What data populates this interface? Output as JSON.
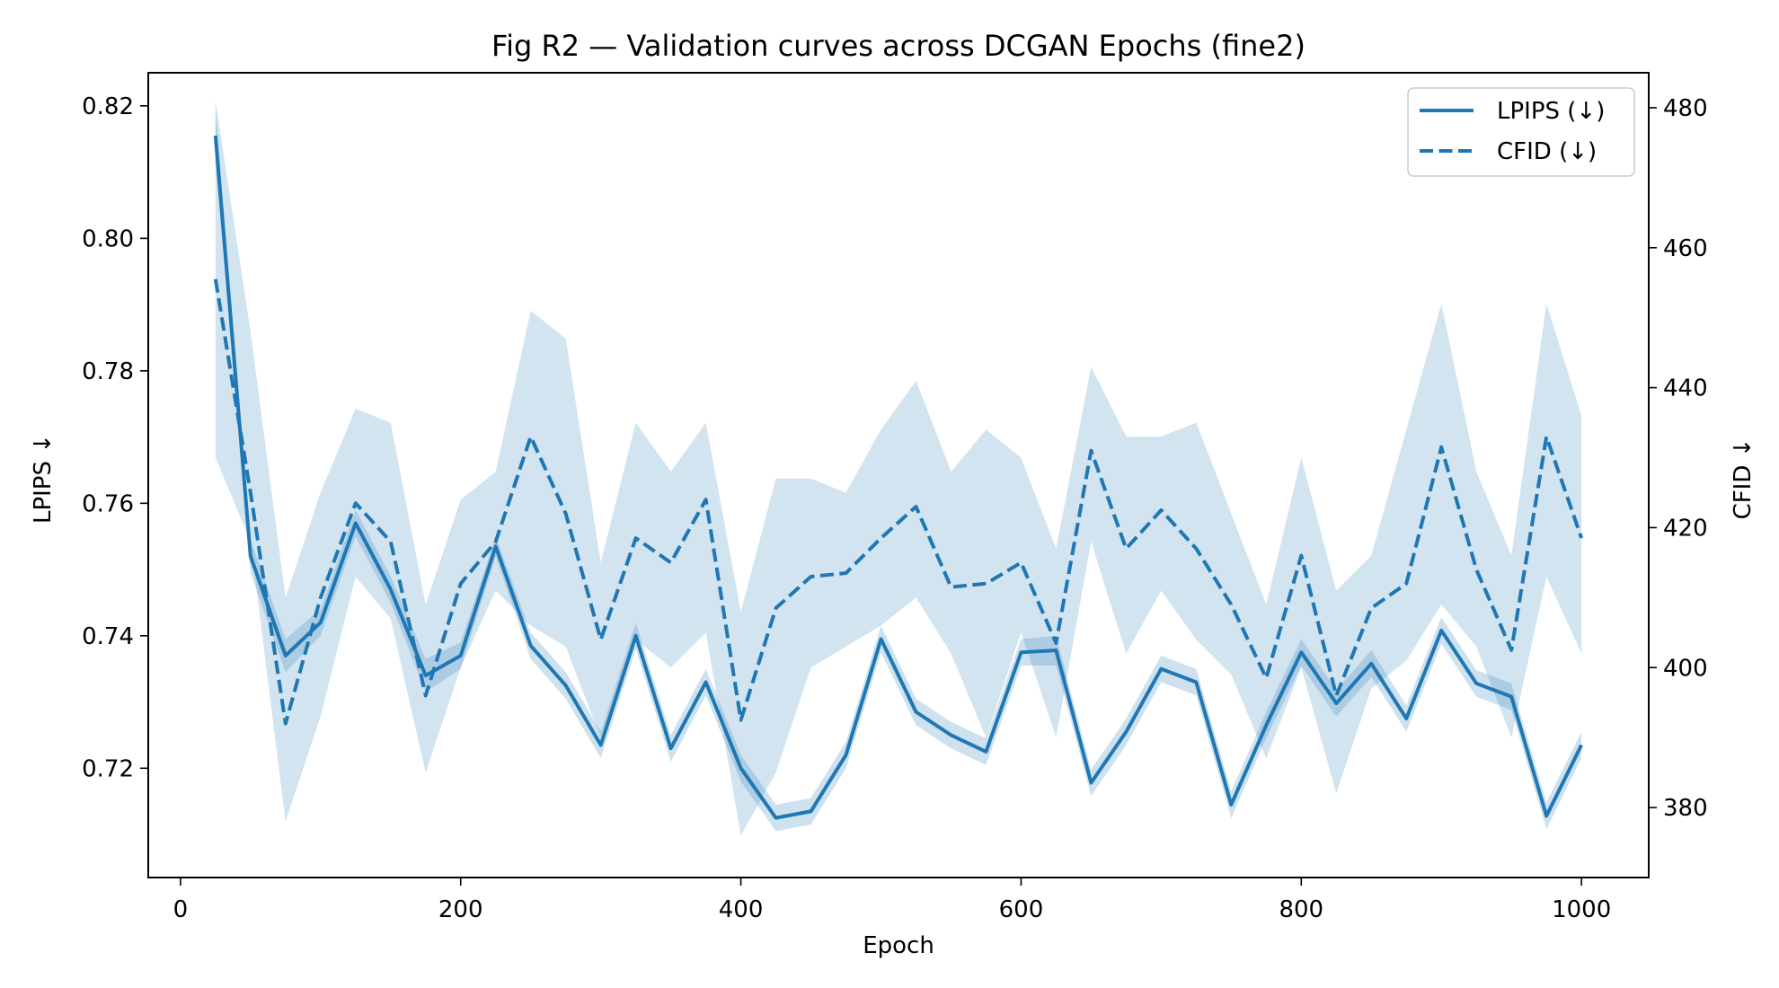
{
  "chart_data": {
    "type": "line",
    "title": "Fig R2 — Validation curves across DCGAN Epochs (fine2)",
    "xlabel": "Epoch",
    "ylabel_left": "LPIPS ↓",
    "ylabel_right": "CFID ↓",
    "xlim": [
      -23,
      1048
    ],
    "ylim_left": [
      0.7035,
      0.825
    ],
    "ylim_right": [
      370,
      485
    ],
    "xticks": [
      0,
      200,
      400,
      600,
      800,
      1000
    ],
    "yticks_left": [
      0.72,
      0.74,
      0.76,
      0.78,
      0.8,
      0.82
    ],
    "yticks_left_labels": [
      "0.72",
      "0.74",
      "0.76",
      "0.78",
      "0.80",
      "0.82"
    ],
    "yticks_right": [
      380,
      400,
      420,
      440,
      460,
      480
    ],
    "legend_position": "upper-right",
    "color": "#1f77b4",
    "band_color": "#1f77b4",
    "x": [
      25,
      50,
      75,
      100,
      125,
      150,
      175,
      200,
      225,
      250,
      275,
      300,
      325,
      350,
      375,
      400,
      425,
      450,
      475,
      500,
      525,
      550,
      575,
      600,
      625,
      650,
      675,
      700,
      725,
      750,
      775,
      800,
      825,
      850,
      875,
      900,
      925,
      950,
      975,
      1000
    ],
    "series": [
      {
        "name": "LPIPS (↓)",
        "axis": "left",
        "style": "solid",
        "values": [
          0.8155,
          0.752,
          0.737,
          0.742,
          0.757,
          0.747,
          0.734,
          0.737,
          0.7535,
          0.7385,
          0.7325,
          0.7235,
          0.74,
          0.723,
          0.733,
          0.72,
          0.7125,
          0.7135,
          0.722,
          0.7395,
          0.7285,
          0.725,
          0.7225,
          0.7375,
          0.7378,
          0.7178,
          0.7255,
          0.735,
          0.733,
          0.7145,
          0.7265,
          0.7375,
          0.7298,
          0.7358,
          0.7275,
          0.7408,
          0.7328,
          0.7308,
          0.7128,
          0.7235
        ],
        "lower": [
          0.8115,
          0.7495,
          0.7345,
          0.74,
          0.755,
          0.745,
          0.7315,
          0.735,
          0.752,
          0.7365,
          0.7305,
          0.7215,
          0.738,
          0.721,
          0.731,
          0.718,
          0.7105,
          0.7115,
          0.72,
          0.7375,
          0.7265,
          0.723,
          0.7205,
          0.7355,
          0.7355,
          0.7158,
          0.7235,
          0.733,
          0.731,
          0.7125,
          0.7245,
          0.7355,
          0.7278,
          0.7338,
          0.7255,
          0.7388,
          0.7308,
          0.7288,
          0.7108,
          0.7215
        ],
        "upper": [
          0.8195,
          0.7545,
          0.7395,
          0.744,
          0.759,
          0.749,
          0.7365,
          0.739,
          0.755,
          0.7405,
          0.7345,
          0.7255,
          0.742,
          0.725,
          0.735,
          0.722,
          0.7145,
          0.7155,
          0.724,
          0.7415,
          0.7305,
          0.727,
          0.7245,
          0.7395,
          0.74,
          0.7198,
          0.7275,
          0.737,
          0.735,
          0.7165,
          0.7285,
          0.7395,
          0.7318,
          0.7378,
          0.7295,
          0.7428,
          0.7348,
          0.7328,
          0.7148,
          0.7255
        ]
      },
      {
        "name": "CFID (↓)",
        "axis": "right",
        "style": "dashed",
        "values": [
          455.5,
          425,
          392,
          410,
          423.5,
          418,
          396,
          412,
          418,
          433,
          422,
          404,
          418.5,
          415,
          424,
          392.5,
          408.5,
          413,
          413.5,
          418.5,
          423,
          411.5,
          412,
          415,
          403.5,
          431,
          417,
          422.5,
          417,
          409,
          398.5,
          416,
          396,
          408.5,
          412,
          431.5,
          414,
          402.5,
          433,
          418.5
        ],
        "lower": [
          430,
          418,
          378,
          393,
          413,
          407,
          385,
          400,
          411,
          406,
          403,
          390,
          404,
          400,
          405,
          376,
          385,
          400,
          403,
          406,
          410,
          402,
          390,
          405,
          390,
          418,
          402,
          411,
          404,
          399,
          387,
          400,
          382,
          397,
          401,
          409,
          403,
          390,
          413,
          402
        ],
        "upper": [
          481,
          448,
          410,
          425,
          437,
          435,
          409,
          424,
          428,
          451,
          447,
          415,
          435,
          428,
          435,
          408,
          427,
          427,
          425,
          434,
          441,
          428,
          434,
          430,
          417,
          443,
          433,
          433,
          435,
          422,
          409,
          430,
          411,
          416,
          434,
          452,
          428,
          416,
          452,
          436
        ]
      }
    ]
  }
}
